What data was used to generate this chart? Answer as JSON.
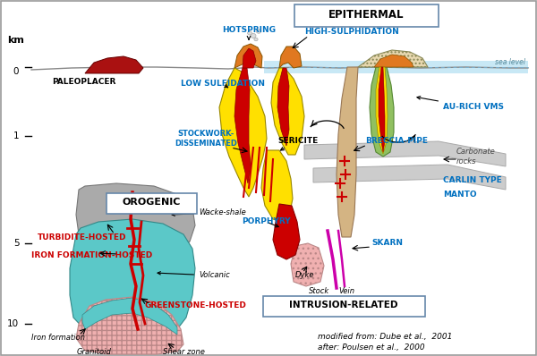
{
  "bg_color": "#ffffff",
  "epithermal_label": "EPITHERMAL",
  "orogenic_label": "OROGENIC",
  "intrusion_label": "INTRUSION-RELATED",
  "citation": "modified from: Dube et al.,  2001\nafter: Poulsen et al.,  2000",
  "km_label": "km",
  "sea_level_label": "sea level",
  "paleoplacer_label": "PALEOPLACER",
  "hotspring_label": "HOTSPRING",
  "high_sulph_label": "HIGH-SULPHIDATION",
  "low_sulfid_label": "LOW SULFIDATION",
  "au_rich_label": "AU-RICH VMS",
  "stockwork_label": "STOCKWORK-\nDISSEMINATED",
  "sericite_label": "SERICITE",
  "breccia_label": "BRECCIA-PIPE",
  "carbonate_label": "Carbonate\nrocks",
  "carlin_label": "CARLIN TYPE",
  "manto_label": "MANTO",
  "porphyry_label": "PORPHYRY",
  "skarn_label": "SKARN",
  "dyke_label": "Dyke",
  "stock_label": "Stock",
  "vein_label": "Vein",
  "turbidite_label": "TURBIDITE-HOSTED",
  "iron_form_label": "IRON FORMATION-HOSTED",
  "greenstone_label": "GREENSTONE-HOSTED",
  "wacke_label": "Wacke-shale",
  "volcanic_label": "Volcanic",
  "iron_form_note": "Iron formation",
  "granitoid_label": "Granitoid",
  "shear_label": "Shear zone",
  "yellow": "#FFE000",
  "red": "#CC0000",
  "cyan": "#5BC8C8",
  "pink": "#F0B0B0",
  "gray": "#AAAAAA",
  "light_gray": "#CCCCCC",
  "orange": "#E07820",
  "green_vms": "#90C060",
  "light_blue_sea": "#C8E8F5",
  "blue_label": "#0070C0",
  "magenta": "#CC00AA",
  "tan": "#D4B483"
}
